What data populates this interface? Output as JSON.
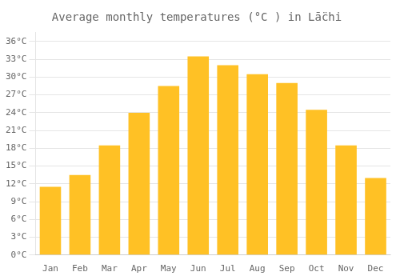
{
  "chart_data": {
    "type": "bar",
    "title": "Average monthly temperatures (°C ) in Lā̈chi",
    "categories": [
      "Jan",
      "Feb",
      "Mar",
      "Apr",
      "May",
      "Jun",
      "Jul",
      "Aug",
      "Sep",
      "Oct",
      "Nov",
      "Dec"
    ],
    "values": [
      11.5,
      13.5,
      18.5,
      24.0,
      28.5,
      33.5,
      32.0,
      30.5,
      29.0,
      24.5,
      18.5,
      13.0
    ],
    "color": "#FFC125",
    "ylim": [
      0,
      37.5
    ],
    "yticks": [
      {
        "value": 0,
        "label": "0°C"
      },
      {
        "value": 3,
        "label": "3°C"
      },
      {
        "value": 6,
        "label": "6°C"
      },
      {
        "value": 9,
        "label": "9°C"
      },
      {
        "value": 12,
        "label": "12°C"
      },
      {
        "value": 15,
        "label": "15°C"
      },
      {
        "value": 18,
        "label": "18°C"
      },
      {
        "value": 21,
        "label": "21°C"
      },
      {
        "value": 24,
        "label": "24°C"
      },
      {
        "value": 27,
        "label": "27°C"
      },
      {
        "value": 30,
        "label": "30°C"
      },
      {
        "value": 33,
        "label": "33°C"
      },
      {
        "value": 36,
        "label": "36°C"
      }
    ],
    "grid": true
  }
}
